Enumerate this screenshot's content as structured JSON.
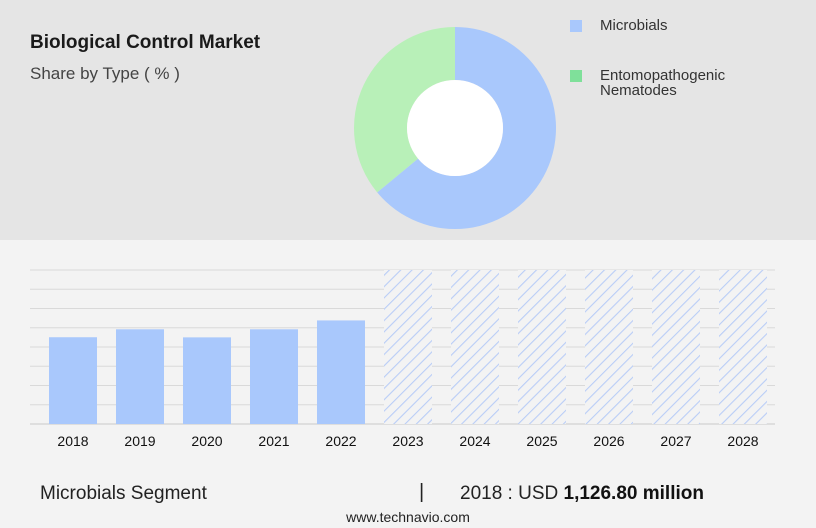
{
  "header": {
    "title": "Biological Control Market",
    "subtitle": "Share by Type ( % )"
  },
  "chart_data": [
    {
      "type": "pie",
      "title": "Biological Control Market",
      "subtitle": "Share by Type ( % )",
      "donut": true,
      "slices": [
        {
          "name": "Microbials",
          "value": 64,
          "color": "#a9c8fc"
        },
        {
          "name": "Entomopathogenic Nematodes",
          "value": 36,
          "color": "#b8f0b8"
        }
      ],
      "legend": {
        "placement": "right",
        "items": [
          {
            "label": "Microbials",
            "color": "#a9c8fc"
          },
          {
            "label": "Entomopathogenic Nematodes",
            "color": "#7fe09a"
          }
        ]
      }
    },
    {
      "type": "bar",
      "categories": [
        "2018",
        "2019",
        "2020",
        "2021",
        "2022",
        "2023",
        "2024",
        "2025",
        "2026",
        "2027",
        "2028"
      ],
      "values": [
        1126.8,
        1230,
        1125,
        1230,
        1345,
        null,
        null,
        null,
        null,
        null,
        null
      ],
      "forecast_categories": [
        "2023",
        "2024",
        "2025",
        "2026",
        "2027",
        "2028"
      ],
      "bar_color": "#a9c8fc",
      "forecast_style": "hatched",
      "ylim": [
        0,
        2000
      ],
      "grid": true
    }
  ],
  "footer": {
    "segment": "Microbials Segment",
    "separator": "|",
    "year_label": "2018 : USD",
    "value": "1,126.80 million"
  },
  "source": "www.technavio.com"
}
